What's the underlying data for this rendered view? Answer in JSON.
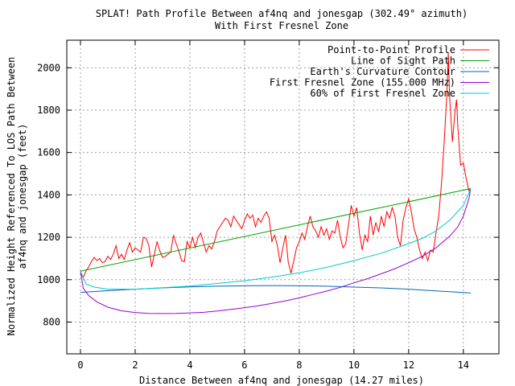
{
  "chart_data": {
    "type": "line",
    "title_line1": "SPLAT! Path Profile Between af4nq and jonesgap (302.49° azimuth)",
    "title_line2": "With First Fresnel Zone",
    "xlabel": "Distance Between af4nq and jonesgap (14.27 miles)",
    "ylabel_line1": "Normalized Height Referenced To LOS Path Between",
    "ylabel_line2": "af4nq and jonesgap (feet)",
    "xlim": [
      -0.5,
      15.3
    ],
    "ylim": [
      650,
      2130
    ],
    "x_ticks": [
      0,
      2,
      4,
      6,
      8,
      10,
      12,
      14
    ],
    "x_tick_labels": [
      "0",
      "2",
      "4",
      "6",
      "8",
      "10",
      "12",
      "14"
    ],
    "y_ticks": [
      800,
      1000,
      1200,
      1400,
      1600,
      1800,
      2000
    ],
    "y_tick_labels": [
      "800",
      "1000",
      "1200",
      "1400",
      "1600",
      "1800",
      "2000"
    ],
    "grid": true,
    "legend_position": "top-right",
    "series": [
      {
        "name": "Point-to-Point Profile",
        "color": "#ff0000",
        "points": [
          [
            0,
            1030
          ],
          [
            0.1,
            1010
          ],
          [
            0.2,
            1040
          ],
          [
            0.3,
            1060
          ],
          [
            0.4,
            1085
          ],
          [
            0.5,
            1105
          ],
          [
            0.6,
            1090
          ],
          [
            0.7,
            1100
          ],
          [
            0.8,
            1080
          ],
          [
            0.9,
            1085
          ],
          [
            1.0,
            1110
          ],
          [
            1.1,
            1095
          ],
          [
            1.2,
            1120
          ],
          [
            1.3,
            1160
          ],
          [
            1.4,
            1100
          ],
          [
            1.5,
            1120
          ],
          [
            1.6,
            1095
          ],
          [
            1.7,
            1140
          ],
          [
            1.8,
            1175
          ],
          [
            1.9,
            1130
          ],
          [
            2.0,
            1150
          ],
          [
            2.1,
            1140
          ],
          [
            2.2,
            1130
          ],
          [
            2.3,
            1200
          ],
          [
            2.4,
            1195
          ],
          [
            2.5,
            1160
          ],
          [
            2.6,
            1060
          ],
          [
            2.7,
            1120
          ],
          [
            2.8,
            1180
          ],
          [
            2.9,
            1135
          ],
          [
            3.0,
            1105
          ],
          [
            3.1,
            1110
          ],
          [
            3.2,
            1120
          ],
          [
            3.3,
            1130
          ],
          [
            3.4,
            1210
          ],
          [
            3.5,
            1170
          ],
          [
            3.6,
            1135
          ],
          [
            3.7,
            1090
          ],
          [
            3.8,
            1085
          ],
          [
            3.9,
            1180
          ],
          [
            4.0,
            1150
          ],
          [
            4.1,
            1200
          ],
          [
            4.2,
            1150
          ],
          [
            4.3,
            1200
          ],
          [
            4.4,
            1220
          ],
          [
            4.5,
            1175
          ],
          [
            4.6,
            1130
          ],
          [
            4.7,
            1160
          ],
          [
            4.8,
            1145
          ],
          [
            4.9,
            1180
          ],
          [
            5.0,
            1230
          ],
          [
            5.1,
            1250
          ],
          [
            5.2,
            1270
          ],
          [
            5.3,
            1290
          ],
          [
            5.4,
            1280
          ],
          [
            5.5,
            1250
          ],
          [
            5.6,
            1300
          ],
          [
            5.7,
            1280
          ],
          [
            5.8,
            1260
          ],
          [
            5.9,
            1240
          ],
          [
            6.0,
            1280
          ],
          [
            6.1,
            1310
          ],
          [
            6.2,
            1290
          ],
          [
            6.3,
            1305
          ],
          [
            6.4,
            1250
          ],
          [
            6.5,
            1290
          ],
          [
            6.6,
            1270
          ],
          [
            6.7,
            1300
          ],
          [
            6.8,
            1320
          ],
          [
            6.9,
            1290
          ],
          [
            7.0,
            1180
          ],
          [
            7.1,
            1210
          ],
          [
            7.2,
            1160
          ],
          [
            7.3,
            1080
          ],
          [
            7.4,
            1150
          ],
          [
            7.5,
            1210
          ],
          [
            7.6,
            1080
          ],
          [
            7.7,
            1030
          ],
          [
            7.8,
            1090
          ],
          [
            7.9,
            1150
          ],
          [
            8.0,
            1180
          ],
          [
            8.1,
            1220
          ],
          [
            8.2,
            1190
          ],
          [
            8.3,
            1250
          ],
          [
            8.4,
            1300
          ],
          [
            8.5,
            1250
          ],
          [
            8.6,
            1230
          ],
          [
            8.7,
            1200
          ],
          [
            8.8,
            1250
          ],
          [
            8.9,
            1210
          ],
          [
            9.0,
            1240
          ],
          [
            9.1,
            1190
          ],
          [
            9.2,
            1230
          ],
          [
            9.3,
            1220
          ],
          [
            9.4,
            1280
          ],
          [
            9.5,
            1200
          ],
          [
            9.6,
            1150
          ],
          [
            9.7,
            1170
          ],
          [
            9.8,
            1260
          ],
          [
            9.9,
            1350
          ],
          [
            10.0,
            1300
          ],
          [
            10.1,
            1340
          ],
          [
            10.2,
            1220
          ],
          [
            10.3,
            1140
          ],
          [
            10.4,
            1210
          ],
          [
            10.5,
            1180
          ],
          [
            10.6,
            1300
          ],
          [
            10.7,
            1210
          ],
          [
            10.8,
            1270
          ],
          [
            10.9,
            1225
          ],
          [
            11.0,
            1300
          ],
          [
            11.1,
            1250
          ],
          [
            11.2,
            1320
          ],
          [
            11.3,
            1290
          ],
          [
            11.4,
            1340
          ],
          [
            11.5,
            1300
          ],
          [
            11.6,
            1200
          ],
          [
            11.7,
            1160
          ],
          [
            11.8,
            1280
          ],
          [
            11.9,
            1340
          ],
          [
            12.0,
            1380
          ],
          [
            12.1,
            1320
          ],
          [
            12.2,
            1240
          ],
          [
            12.3,
            1200
          ],
          [
            12.4,
            1140
          ],
          [
            12.5,
            1100
          ],
          [
            12.6,
            1130
          ],
          [
            12.7,
            1090
          ],
          [
            12.8,
            1140
          ],
          [
            12.9,
            1130
          ],
          [
            13.0,
            1220
          ],
          [
            13.1,
            1300
          ],
          [
            13.2,
            1450
          ],
          [
            13.3,
            1650
          ],
          [
            13.4,
            1880
          ],
          [
            13.45,
            2070
          ],
          [
            13.5,
            1860
          ],
          [
            13.6,
            1650
          ],
          [
            13.7,
            1800
          ],
          [
            13.75,
            1850
          ],
          [
            13.8,
            1720
          ],
          [
            13.9,
            1540
          ],
          [
            14.0,
            1550
          ],
          [
            14.1,
            1480
          ],
          [
            14.2,
            1420
          ],
          [
            14.27,
            1430
          ]
        ]
      },
      {
        "name": "Line of Sight Path",
        "color": "#00a000",
        "points": [
          [
            0,
            1040
          ],
          [
            14.27,
            1430
          ]
        ]
      },
      {
        "name": "Earth's Curvature Contour",
        "color": "#0066bb",
        "points": [
          [
            0,
            940
          ],
          [
            1,
            948
          ],
          [
            2,
            955
          ],
          [
            3,
            961
          ],
          [
            4,
            966
          ],
          [
            5,
            969
          ],
          [
            6,
            971
          ],
          [
            7,
            972
          ],
          [
            8,
            971
          ],
          [
            9,
            969
          ],
          [
            10,
            965
          ],
          [
            11,
            961
          ],
          [
            12,
            955
          ],
          [
            13,
            947
          ],
          [
            14,
            939
          ],
          [
            14.27,
            937
          ]
        ]
      },
      {
        "name": "First Fresnel Zone (155.000 MHz)",
        "color": "#9900cc",
        "points": [
          [
            0,
            1040
          ],
          [
            0.1,
            960
          ],
          [
            0.3,
            925
          ],
          [
            0.6,
            895
          ],
          [
            1,
            870
          ],
          [
            1.5,
            853
          ],
          [
            2,
            845
          ],
          [
            2.5,
            841
          ],
          [
            3,
            840
          ],
          [
            3.5,
            841
          ],
          [
            4,
            843
          ],
          [
            4.5,
            846
          ],
          [
            5,
            852
          ],
          [
            5.5,
            860
          ],
          [
            6,
            868
          ],
          [
            6.5,
            877
          ],
          [
            7,
            888
          ],
          [
            7.5,
            900
          ],
          [
            8,
            914
          ],
          [
            8.5,
            930
          ],
          [
            9,
            946
          ],
          [
            9.5,
            964
          ],
          [
            10,
            985
          ],
          [
            10.5,
            1005
          ],
          [
            11,
            1028
          ],
          [
            11.5,
            1052
          ],
          [
            12,
            1080
          ],
          [
            12.5,
            1110
          ],
          [
            13,
            1150
          ],
          [
            13.5,
            1205
          ],
          [
            13.8,
            1250
          ],
          [
            14,
            1300
          ],
          [
            14.2,
            1380
          ],
          [
            14.27,
            1430
          ]
        ]
      },
      {
        "name": "60% of First Fresnel Zone",
        "color": "#00cccc",
        "points": [
          [
            0,
            1040
          ],
          [
            0.2,
            980
          ],
          [
            0.5,
            965
          ],
          [
            1,
            955
          ],
          [
            2,
            955
          ],
          [
            3,
            962
          ],
          [
            4,
            970
          ],
          [
            5,
            982
          ],
          [
            6,
            995
          ],
          [
            7,
            1012
          ],
          [
            8,
            1032
          ],
          [
            9,
            1058
          ],
          [
            10,
            1090
          ],
          [
            11,
            1125
          ],
          [
            12,
            1170
          ],
          [
            12.5,
            1195
          ],
          [
            13,
            1230
          ],
          [
            13.5,
            1280
          ],
          [
            14,
            1350
          ],
          [
            14.27,
            1430
          ]
        ]
      }
    ]
  }
}
